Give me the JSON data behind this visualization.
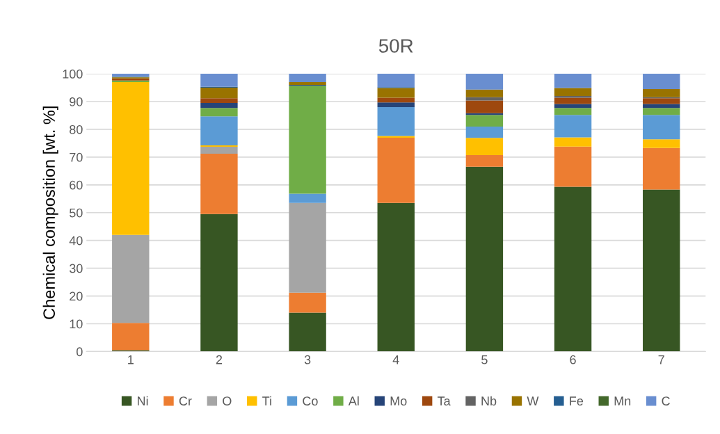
{
  "chart_data": {
    "type": "bar",
    "title": "50R",
    "ylabel": "Chemical composition [wt. %]",
    "stacked": true,
    "categories": [
      "1",
      "2",
      "3",
      "4",
      "5",
      "6",
      "7"
    ],
    "ylim": [
      0,
      100
    ],
    "yticks": [
      0,
      10,
      20,
      30,
      40,
      50,
      60,
      70,
      80,
      90,
      100
    ],
    "grid": "y",
    "legend": "bottom",
    "series": [
      {
        "name": "Ni",
        "color": "#375623",
        "values": [
          0.5,
          49.5,
          14,
          53.5,
          66.5,
          59.3,
          58.3
        ]
      },
      {
        "name": "Cr",
        "color": "#ed7d31",
        "values": [
          9.8,
          21.7,
          7.2,
          23.5,
          4.2,
          14.5,
          15
        ]
      },
      {
        "name": "O",
        "color": "#a5a5a5",
        "values": [
          31.7,
          2.5,
          32.3,
          0,
          0,
          0,
          0
        ]
      },
      {
        "name": "Ti",
        "color": "#ffc000",
        "values": [
          55,
          0.5,
          0,
          0.6,
          6.2,
          3.3,
          3.1
        ]
      },
      {
        "name": "Co",
        "color": "#5b9bd5",
        "values": [
          0,
          10.5,
          3.3,
          10.4,
          4.1,
          8.1,
          8.8
        ]
      },
      {
        "name": "Al",
        "color": "#70ad47",
        "values": [
          0.6,
          3,
          38.9,
          0,
          4.2,
          2.5,
          2.5
        ]
      },
      {
        "name": "Mo",
        "color": "#264478",
        "values": [
          0,
          1.8,
          0.3,
          1.7,
          0.6,
          1.4,
          1.4
        ]
      },
      {
        "name": "Ta",
        "color": "#9e480e",
        "values": [
          0.7,
          1.7,
          0,
          1.7,
          4.6,
          2.3,
          2.1
        ]
      },
      {
        "name": "Nb",
        "color": "#636363",
        "values": [
          0,
          0,
          0,
          0,
          1.2,
          0.6,
          0.4
        ]
      },
      {
        "name": "W",
        "color": "#997300",
        "values": [
          0.4,
          3.8,
          1,
          3.5,
          2.7,
          2.9,
          2.9
        ]
      },
      {
        "name": "Fe",
        "color": "#255e91",
        "values": [
          0,
          0.3,
          0,
          0.3,
          0,
          0,
          0
        ]
      },
      {
        "name": "Mn",
        "color": "#43682b",
        "values": [
          0.2,
          0,
          0,
          0,
          0,
          0,
          0
        ]
      },
      {
        "name": "C",
        "color": "#698ed0",
        "values": [
          1.1,
          4.7,
          3,
          4.8,
          5.7,
          5.1,
          5.5
        ]
      }
    ]
  }
}
